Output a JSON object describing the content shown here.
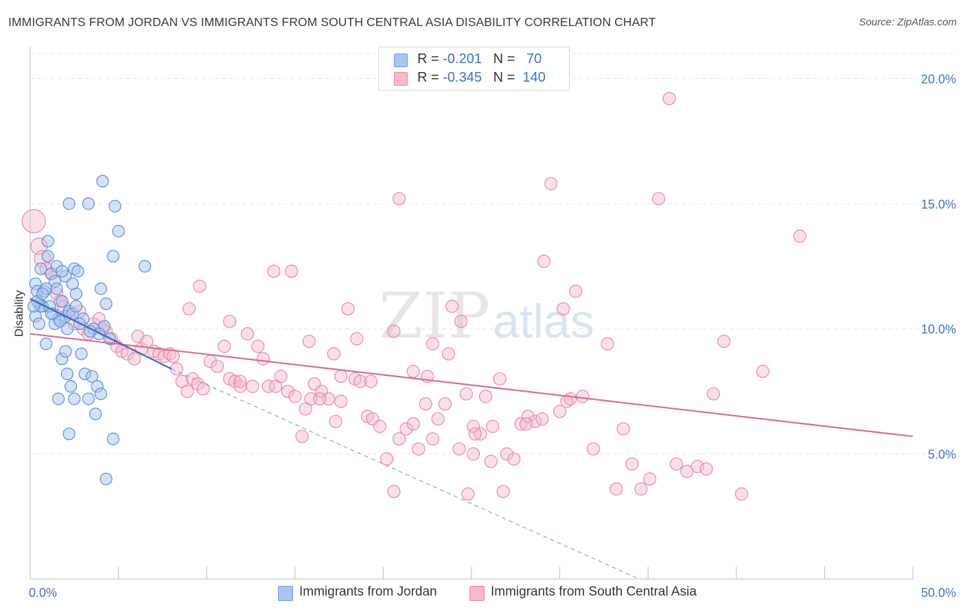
{
  "title": "IMMIGRANTS FROM JORDAN VS IMMIGRANTS FROM SOUTH CENTRAL ASIA DISABILITY CORRELATION CHART",
  "source": "Source: ZipAtlas.com",
  "watermark": {
    "zip": "ZIP",
    "atlas": "atlas"
  },
  "legend": {
    "r_label": "R =",
    "n_label": "N =",
    "rows": [
      {
        "r": "-0.201",
        "n": "70",
        "color": "#a9c6f0",
        "border": "#6f9de0"
      },
      {
        "r": "-0.345",
        "n": "140",
        "color": "#f7b9cb",
        "border": "#e68aa6"
      }
    ]
  },
  "colors": {
    "blue_fill": "#a9c6f0",
    "blue_stroke": "#5b8fd9",
    "blue_line": "#3366cc",
    "pink_fill": "#f7b9cb",
    "pink_stroke": "#e58aa7",
    "pink_line": "#e0688f"
  },
  "chart_data": {
    "type": "scatter",
    "ylabel": "Disability",
    "xlim": [
      0,
      50
    ],
    "ylim": [
      0,
      21
    ],
    "x_tick_labels": [
      "0.0%",
      "50.0%"
    ],
    "y_ticks": [
      5,
      10,
      15,
      20
    ],
    "y_tick_labels": [
      "5.0%",
      "10.0%",
      "15.0%",
      "20.0%"
    ],
    "grid": "horizontal dashed",
    "legend_position": "top-center",
    "series": [
      {
        "name": "Immigrants from Jordan",
        "trend": {
          "x": [
            0.0,
            8.0
          ],
          "y": [
            11.2,
            8.4
          ]
        },
        "trend_extension": {
          "x": [
            8.0,
            34.5
          ],
          "y": [
            8.4,
            0.0
          ]
        },
        "points": [
          [
            0.3,
            11.8
          ],
          [
            0.4,
            11.5
          ],
          [
            0.5,
            11.0
          ],
          [
            0.6,
            12.4
          ],
          [
            0.7,
            10.9
          ],
          [
            0.8,
            11.5
          ],
          [
            0.3,
            10.5
          ],
          [
            0.5,
            10.2
          ],
          [
            0.6,
            10.9
          ],
          [
            0.9,
            11.6
          ],
          [
            1.0,
            12.9
          ],
          [
            1.2,
            12.2
          ],
          [
            1.4,
            11.9
          ],
          [
            1.5,
            12.5
          ],
          [
            1.3,
            10.6
          ],
          [
            1.6,
            10.4
          ],
          [
            1.8,
            11.1
          ],
          [
            2.0,
            10.5
          ],
          [
            2.2,
            10.7
          ],
          [
            1.4,
            10.2
          ],
          [
            1.7,
            10.3
          ],
          [
            2.1,
            10.0
          ],
          [
            2.4,
            10.6
          ],
          [
            2.6,
            10.9
          ],
          [
            2.0,
            12.1
          ],
          [
            2.5,
            12.4
          ],
          [
            1.0,
            13.5
          ],
          [
            1.8,
            12.3
          ],
          [
            0.9,
            9.4
          ],
          [
            1.8,
            8.8
          ],
          [
            2.0,
            9.1
          ],
          [
            2.3,
            7.7
          ],
          [
            2.5,
            7.2
          ],
          [
            1.6,
            7.2
          ],
          [
            2.1,
            8.2
          ],
          [
            3.1,
            8.2
          ],
          [
            3.5,
            8.1
          ],
          [
            3.8,
            7.7
          ],
          [
            4.0,
            7.4
          ],
          [
            2.9,
            9.0
          ],
          [
            3.0,
            10.4
          ],
          [
            3.6,
            10.0
          ],
          [
            4.2,
            10.1
          ],
          [
            4.5,
            9.6
          ],
          [
            3.3,
            15.0
          ],
          [
            2.2,
            15.0
          ],
          [
            4.0,
            11.6
          ],
          [
            4.3,
            11.0
          ],
          [
            4.7,
            12.9
          ],
          [
            4.1,
            15.9
          ],
          [
            4.8,
            14.9
          ],
          [
            5.0,
            13.9
          ],
          [
            6.5,
            12.5
          ],
          [
            3.7,
            6.6
          ],
          [
            2.2,
            5.8
          ],
          [
            4.7,
            5.6
          ],
          [
            4.3,
            4.0
          ],
          [
            3.3,
            7.2
          ],
          [
            1.1,
            10.9
          ],
          [
            0.4,
            11.1
          ],
          [
            0.7,
            11.4
          ],
          [
            1.5,
            11.6
          ],
          [
            2.8,
            10.2
          ],
          [
            3.9,
            9.8
          ],
          [
            2.6,
            11.4
          ],
          [
            0.2,
            10.9
          ],
          [
            1.2,
            10.6
          ],
          [
            2.4,
            11.8
          ],
          [
            3.4,
            9.9
          ],
          [
            2.7,
            12.3
          ]
        ]
      },
      {
        "name": "Immigrants from South Central Asia",
        "trend": {
          "x": [
            0.0,
            50.0
          ],
          "y": [
            9.8,
            5.7
          ]
        },
        "points": [
          [
            0.2,
            14.3
          ],
          [
            0.5,
            13.3
          ],
          [
            0.7,
            12.8
          ],
          [
            0.9,
            12.4
          ],
          [
            1.2,
            12.2
          ],
          [
            1.5,
            11.4
          ],
          [
            1.7,
            11.1
          ],
          [
            1.9,
            10.9
          ],
          [
            2.2,
            10.6
          ],
          [
            2.5,
            10.2
          ],
          [
            2.8,
            10.7
          ],
          [
            3.0,
            10.0
          ],
          [
            3.3,
            9.8
          ],
          [
            3.6,
            10.2
          ],
          [
            3.9,
            10.4
          ],
          [
            4.1,
            10.0
          ],
          [
            4.3,
            9.9
          ],
          [
            4.6,
            9.6
          ],
          [
            4.9,
            9.3
          ],
          [
            5.2,
            9.1
          ],
          [
            5.5,
            9.0
          ],
          [
            5.9,
            8.8
          ],
          [
            6.1,
            9.7
          ],
          [
            6.3,
            9.2
          ],
          [
            6.6,
            9.5
          ],
          [
            7.0,
            9.1
          ],
          [
            7.3,
            9.0
          ],
          [
            7.6,
            8.9
          ],
          [
            7.9,
            9.0
          ],
          [
            8.1,
            8.9
          ],
          [
            8.3,
            8.4
          ],
          [
            8.6,
            7.9
          ],
          [
            8.9,
            7.5
          ],
          [
            9.2,
            8.0
          ],
          [
            9.5,
            7.8
          ],
          [
            9.8,
            7.6
          ],
          [
            10.2,
            8.7
          ],
          [
            10.6,
            8.5
          ],
          [
            11.0,
            9.3
          ],
          [
            11.3,
            8.0
          ],
          [
            11.6,
            7.9
          ],
          [
            11.9,
            7.7
          ],
          [
            12.3,
            9.8
          ],
          [
            12.6,
            7.7
          ],
          [
            12.9,
            9.3
          ],
          [
            13.2,
            8.8
          ],
          [
            13.5,
            7.7
          ],
          [
            13.9,
            7.7
          ],
          [
            14.2,
            8.1
          ],
          [
            14.6,
            7.5
          ],
          [
            15.0,
            7.3
          ],
          [
            15.4,
            5.7
          ],
          [
            15.8,
            9.5
          ],
          [
            16.1,
            7.8
          ],
          [
            16.5,
            7.5
          ],
          [
            16.9,
            7.2
          ],
          [
            17.3,
            6.3
          ],
          [
            17.6,
            7.1
          ],
          [
            18.0,
            10.8
          ],
          [
            18.4,
            8.0
          ],
          [
            18.7,
            7.9
          ],
          [
            19.1,
            6.5
          ],
          [
            19.4,
            6.4
          ],
          [
            19.8,
            6.1
          ],
          [
            20.2,
            4.8
          ],
          [
            20.6,
            9.9
          ],
          [
            20.9,
            5.6
          ],
          [
            21.3,
            6.0
          ],
          [
            21.7,
            6.2
          ],
          [
            22.0,
            5.2
          ],
          [
            22.4,
            7.0
          ],
          [
            22.8,
            5.6
          ],
          [
            23.1,
            6.4
          ],
          [
            23.5,
            7.0
          ],
          [
            23.9,
            10.9
          ],
          [
            24.3,
            5.2
          ],
          [
            24.7,
            7.4
          ],
          [
            25.1,
            6.1
          ],
          [
            25.5,
            5.8
          ],
          [
            25.8,
            7.3
          ],
          [
            26.2,
            6.1
          ],
          [
            26.6,
            8.0
          ],
          [
            27.0,
            5.0
          ],
          [
            27.4,
            4.8
          ],
          [
            27.8,
            6.2
          ],
          [
            28.2,
            6.5
          ],
          [
            28.6,
            6.3
          ],
          [
            29.1,
            12.7
          ],
          [
            29.5,
            15.8
          ],
          [
            30.0,
            6.7
          ],
          [
            30.4,
            7.1
          ],
          [
            30.9,
            11.5
          ],
          [
            31.3,
            7.3
          ],
          [
            32.7,
            9.4
          ],
          [
            33.2,
            3.6
          ],
          [
            33.6,
            6.0
          ],
          [
            34.1,
            4.6
          ],
          [
            34.6,
            3.6
          ],
          [
            35.1,
            4.0
          ],
          [
            35.6,
            15.2
          ],
          [
            36.2,
            19.2
          ],
          [
            36.6,
            4.6
          ],
          [
            37.2,
            4.3
          ],
          [
            37.8,
            4.5
          ],
          [
            38.3,
            4.4
          ],
          [
            38.7,
            7.4
          ],
          [
            39.3,
            9.5
          ],
          [
            40.3,
            3.4
          ],
          [
            41.5,
            8.3
          ],
          [
            43.6,
            13.7
          ],
          [
            20.6,
            3.5
          ],
          [
            24.4,
            10.3
          ],
          [
            14.8,
            12.3
          ],
          [
            13.8,
            12.3
          ],
          [
            20.9,
            15.2
          ],
          [
            9.6,
            11.7
          ],
          [
            9.0,
            10.8
          ],
          [
            11.3,
            10.3
          ],
          [
            11.9,
            7.9
          ],
          [
            15.9,
            7.2
          ],
          [
            17.6,
            8.1
          ],
          [
            19.3,
            7.9
          ],
          [
            22.5,
            8.1
          ],
          [
            23.7,
            9.0
          ],
          [
            25.2,
            5.8
          ],
          [
            26.8,
            3.5
          ],
          [
            28.1,
            6.2
          ],
          [
            29.0,
            6.4
          ],
          [
            30.6,
            7.2
          ],
          [
            31.9,
            5.2
          ],
          [
            26.1,
            4.7
          ],
          [
            30.2,
            10.8
          ],
          [
            25.1,
            5.0
          ],
          [
            24.8,
            3.4
          ],
          [
            21.7,
            8.3
          ],
          [
            22.8,
            9.4
          ],
          [
            18.5,
            9.6
          ],
          [
            17.2,
            9.0
          ],
          [
            16.4,
            7.2
          ],
          [
            15.6,
            6.8
          ]
        ]
      }
    ]
  }
}
